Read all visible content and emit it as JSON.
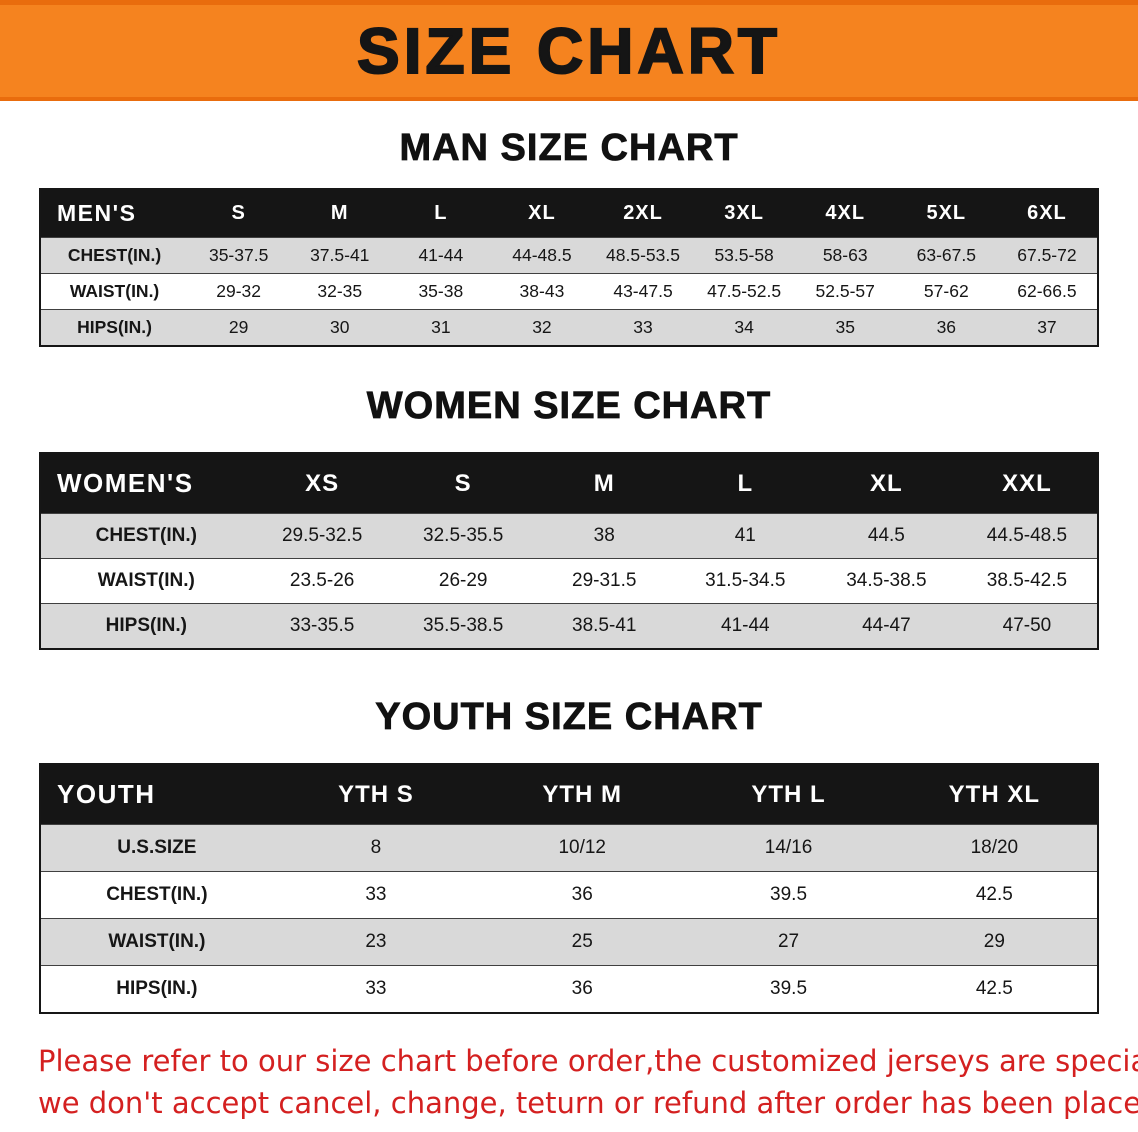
{
  "banner": {
    "title": "SIZE CHART",
    "bg_color": "#f5831f",
    "text_color": "#151515"
  },
  "sections": [
    {
      "heading": "MAN SIZE CHART",
      "table": {
        "header": [
          "MEN'S",
          "S",
          "M",
          "L",
          "XL",
          "2XL",
          "3XL",
          "4XL",
          "5XL",
          "6XL"
        ],
        "rows": [
          {
            "label": "CHEST(IN.)",
            "values": [
              "35-37.5",
              "37.5-41",
              "41-44",
              "44-48.5",
              "48.5-53.5",
              "53.5-58",
              "58-63",
              "63-67.5",
              "67.5-72"
            ]
          },
          {
            "label": "WAIST(IN.)",
            "values": [
              "29-32",
              "32-35",
              "35-38",
              "38-43",
              "43-47.5",
              "47.5-52.5",
              "52.5-57",
              "57-62",
              "62-66.5"
            ]
          },
          {
            "label": "HIPS(IN.)",
            "values": [
              "29",
              "30",
              "31",
              "32",
              "33",
              "34",
              "35",
              "36",
              "37"
            ]
          }
        ]
      }
    },
    {
      "heading": "WOMEN SIZE CHART",
      "table": {
        "header": [
          "WOMEN'S",
          "XS",
          "S",
          "M",
          "L",
          "XL",
          "XXL"
        ],
        "rows": [
          {
            "label": "CHEST(IN.)",
            "values": [
              "29.5-32.5",
              "32.5-35.5",
              "38",
              "41",
              "44.5",
              "44.5-48.5"
            ]
          },
          {
            "label": "WAIST(IN.)",
            "values": [
              "23.5-26",
              "26-29",
              "29-31.5",
              "31.5-34.5",
              "34.5-38.5",
              "38.5-42.5"
            ]
          },
          {
            "label": "HIPS(IN.)",
            "values": [
              "33-35.5",
              "35.5-38.5",
              "38.5-41",
              "41-44",
              "44-47",
              "47-50"
            ]
          }
        ]
      }
    },
    {
      "heading": "YOUTH SIZE CHART",
      "table": {
        "header": [
          "YOUTH",
          "YTH S",
          "YTH M",
          "YTH L",
          "YTH XL"
        ],
        "rows": [
          {
            "label": "U.S.SIZE",
            "values": [
              "8",
              "10/12",
              "14/16",
              "18/20"
            ]
          },
          {
            "label": "CHEST(IN.)",
            "values": [
              "33",
              "36",
              "39.5",
              "42.5"
            ]
          },
          {
            "label": "WAIST(IN.)",
            "values": [
              "23",
              "25",
              "27",
              "29"
            ]
          },
          {
            "label": "HIPS(IN.)",
            "values": [
              "33",
              "36",
              "39.5",
              "42.5"
            ]
          }
        ]
      }
    }
  ],
  "disclaimer": {
    "line1": "Please refer to our size chart before order,the customized jerseys are special products,",
    "line2": "we don't accept cancel, change, teturn or refund after order has been placed!",
    "color": "#d42020"
  }
}
